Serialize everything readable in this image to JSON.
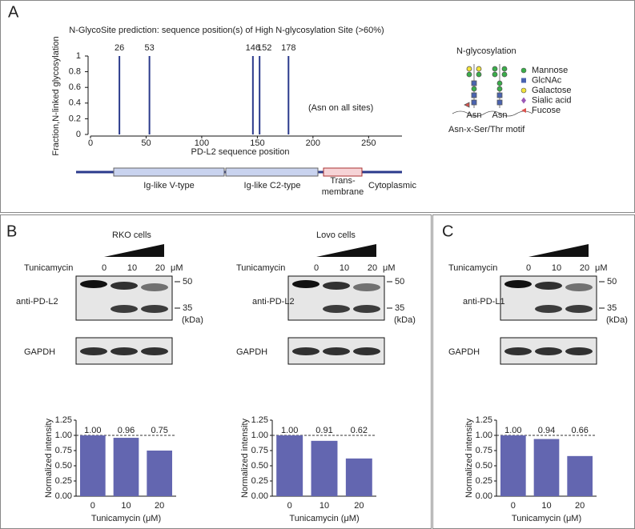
{
  "figure": {
    "panel_labels": [
      "A",
      "B",
      "C"
    ],
    "domains": [
      "Ig-like V-type",
      "Ig-like C2-type",
      "Trans-",
      "membrane",
      "Cytoplasmic"
    ],
    "glycan_legend": {
      "title": "N-glycosylation",
      "sites": [
        "Asn",
        "Asn"
      ],
      "motif": "Asn-x-Ser/Thr motif",
      "items": [
        {
          "name": "Mannose",
          "color": "#3aae4a"
        },
        {
          "name": "GlcNAc",
          "color": "#4a63b0"
        },
        {
          "name": "Galactose",
          "color": "#f2e33a"
        },
        {
          "name": "Sialic acid",
          "color": "#9b59b6"
        },
        {
          "name": "Fucose",
          "color": "#d9534f"
        }
      ]
    },
    "blots": [
      {
        "cell_line": "RKO cells",
        "treatment": "Tunicamycin",
        "doses": [
          "0",
          "10",
          "20"
        ],
        "unit": "μM",
        "antibody": "anti-PD-L2",
        "loading": "GAPDH",
        "markers": [
          "50",
          "35"
        ],
        "marker_unit": "(kDa)"
      },
      {
        "cell_line": "Lovo cells",
        "treatment": "Tunicamycin",
        "doses": [
          "0",
          "10",
          "20"
        ],
        "unit": "μM",
        "antibody": "anti-PD-L2",
        "loading": "GAPDH",
        "markers": [
          "50",
          "35"
        ],
        "marker_unit": "(kDa)"
      },
      {
        "treatment": "Tunicamycin",
        "doses": [
          "0",
          "10",
          "20"
        ],
        "unit": "μM",
        "antibody": "anti-PD-L1",
        "loading": "GAPDH",
        "markers": [
          "50",
          "35"
        ],
        "marker_unit": "(kDa)"
      }
    ]
  },
  "chart_data": [
    {
      "type": "stem",
      "title": "N-GlycoSite prediction: sequence position(s) of High N-glycosylation Site (>60%)",
      "x_label": "PD-L2 sequence position",
      "y_label": "Fraction,N-linked glycosylation",
      "x": [
        26,
        53,
        146,
        152,
        178
      ],
      "values": [
        1,
        1,
        1,
        1,
        1
      ],
      "color": "#2b3a8c",
      "xlim": [
        0,
        280
      ],
      "xticks": [
        0,
        50,
        100,
        150,
        200,
        250
      ],
      "ylim": [
        0,
        1
      ],
      "yticks": [
        0,
        0.2,
        0.4,
        0.6,
        0.8,
        1
      ],
      "annotation": "(Asn on all sites)"
    },
    {
      "type": "bar",
      "categories": [
        "0",
        "10",
        "20"
      ],
      "values": [
        1.0,
        0.96,
        0.75
      ],
      "value_labels": [
        "1.00",
        "0.96",
        "0.75"
      ],
      "color": "#6366b0",
      "x_label": "Tunicamycin (μM)",
      "y_label": "Normalized intensity",
      "ylim": [
        0,
        1.25
      ],
      "reference_line": 1,
      "yticks": [
        {
          "value": 0,
          "label": "0.00"
        },
        {
          "value": 0.25,
          "label": "0.25"
        },
        {
          "value": 0.5,
          "label": "0.50"
        },
        {
          "value": 0.75,
          "label": "0.75"
        },
        {
          "value": 1,
          "label": "1.00"
        },
        {
          "value": 1.25,
          "label": "1.25"
        }
      ]
    },
    {
      "type": "bar",
      "categories": [
        "0",
        "10",
        "20"
      ],
      "values": [
        1.0,
        0.91,
        0.62
      ],
      "value_labels": [
        "1.00",
        "0.91",
        "0.62"
      ],
      "color": "#6366b0",
      "x_label": "Tunicamycin (μM)",
      "y_label": "Normalized intensity",
      "ylim": [
        0,
        1.25
      ],
      "reference_line": 1,
      "yticks": [
        {
          "value": 0,
          "label": "0.00"
        },
        {
          "value": 0.25,
          "label": "0.25"
        },
        {
          "value": 0.5,
          "label": "0.50"
        },
        {
          "value": 0.75,
          "label": "0.75"
        },
        {
          "value": 1,
          "label": "1.00"
        },
        {
          "value": 1.25,
          "label": "1.25"
        }
      ]
    },
    {
      "type": "bar",
      "categories": [
        "0",
        "10",
        "20"
      ],
      "values": [
        1.0,
        0.94,
        0.66
      ],
      "value_labels": [
        "1.00",
        "0.94",
        "0.66"
      ],
      "color": "#6366b0",
      "x_label": "Tunicamycin (μM)",
      "y_label": "Normalized intensity",
      "ylim": [
        0,
        1.25
      ],
      "reference_line": 1,
      "yticks": [
        {
          "value": 0,
          "label": "0.00"
        },
        {
          "value": 0.25,
          "label": "0.25"
        },
        {
          "value": 0.5,
          "label": "0.50"
        },
        {
          "value": 0.75,
          "label": "0.75"
        },
        {
          "value": 1,
          "label": "1.00"
        },
        {
          "value": 1.25,
          "label": "1.25"
        }
      ]
    }
  ]
}
